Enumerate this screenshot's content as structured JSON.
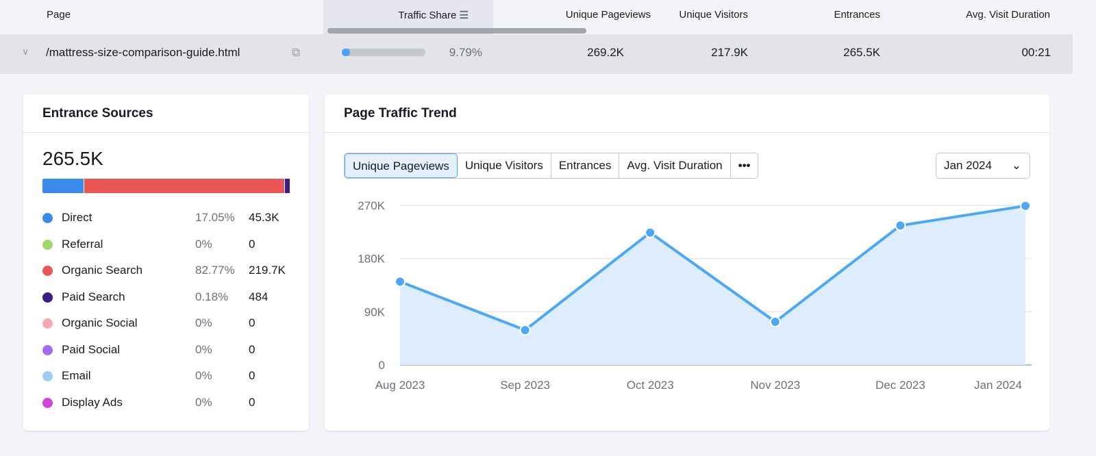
{
  "table": {
    "headers": [
      "Page",
      "Traffic Share",
      "Unique Pageviews",
      "Unique Visitors",
      "Entrances",
      "Avg. Visit Duration"
    ],
    "row": {
      "page": "/mattress-size-comparison-guide.html",
      "traffic_share_pct": 9.79,
      "traffic_share": "9.79%",
      "unique_pageviews": "269.2K",
      "unique_visitors": "217.9K",
      "entrances": "265.5K",
      "avg_visit_duration": "00:21"
    }
  },
  "entrance_sources": {
    "title": "Entrance Sources",
    "total": "265.5K",
    "items": [
      {
        "label": "Direct",
        "pct": "17.05%",
        "value": "45.3K",
        "color": "#3b8beb",
        "share": 17.05
      },
      {
        "label": "Referral",
        "pct": "0%",
        "value": "0",
        "color": "#a2d96d",
        "share": 0
      },
      {
        "label": "Organic Search",
        "pct": "82.77%",
        "value": "219.7K",
        "color": "#eb5757",
        "share": 82.77
      },
      {
        "label": "Paid Search",
        "pct": "0.18%",
        "value": "484",
        "color": "#3a1e84",
        "share": 0.18
      },
      {
        "label": "Organic Social",
        "pct": "0%",
        "value": "0",
        "color": "#f2aab0",
        "share": 0
      },
      {
        "label": "Paid Social",
        "pct": "0%",
        "value": "0",
        "color": "#a36cf2",
        "share": 0
      },
      {
        "label": "Email",
        "pct": "0%",
        "value": "0",
        "color": "#9fcbf7",
        "share": 0
      },
      {
        "label": "Display Ads",
        "pct": "0%",
        "value": "0",
        "color": "#d046d8",
        "share": 0
      }
    ]
  },
  "trend": {
    "title": "Page Traffic Trend",
    "tabs": [
      "Unique Pageviews",
      "Unique Visitors",
      "Entrances",
      "Avg. Visit Duration",
      "•••"
    ],
    "active_tab": 0,
    "period": "Jan 2024"
  },
  "chart_data": {
    "type": "area",
    "x": [
      "Aug 2023",
      "Sep 2023",
      "Oct 2023",
      "Nov 2023",
      "Dec 2023",
      "Jan 2024"
    ],
    "values": [
      141000,
      59000,
      224000,
      73000,
      236000,
      269200
    ],
    "yticks": [
      "0",
      "90K",
      "180K",
      "270K"
    ],
    "ylim": [
      0,
      270000
    ],
    "grid": true,
    "color": "#4aa8f5"
  }
}
